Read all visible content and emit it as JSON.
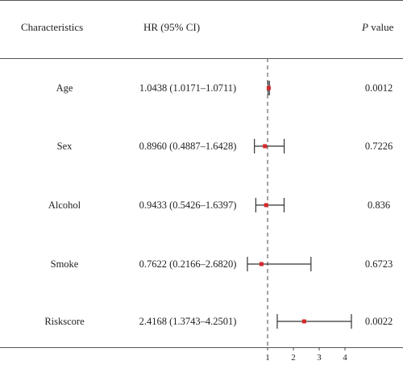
{
  "header": {
    "characteristics": "Characteristics",
    "hr_ci": "HR (95% CI)",
    "p_italic": "P",
    "p_rest": " value"
  },
  "chart_data": {
    "type": "forest",
    "reference_line": 1,
    "xlim": [
      0,
      4.3
    ],
    "xticks": [
      1,
      2,
      3,
      4
    ],
    "rows": [
      {
        "name": "Age",
        "hr_text": "1.0438 (1.0171–1.0711)",
        "hr": 1.0438,
        "lo": 1.0171,
        "hi": 1.0711,
        "p": "0.0012"
      },
      {
        "name": "Sex",
        "hr_text": "0.8960 (0.4887–1.6428)",
        "hr": 0.896,
        "lo": 0.4887,
        "hi": 1.6428,
        "p": "0.7226"
      },
      {
        "name": "Alcohol",
        "hr_text": "0.9433 (0.5426–1.6397)",
        "hr": 0.9433,
        "lo": 0.5426,
        "hi": 1.6397,
        "p": "0.836"
      },
      {
        "name": "Smoke",
        "hr_text": "0.7622 (0.2166–2.6820)",
        "hr": 0.7622,
        "lo": 0.2166,
        "hi": 2.682,
        "p": "0.6723"
      },
      {
        "name": "Riskscore",
        "hr_text": "2.4168 (1.3743–4.2501)",
        "hr": 2.4168,
        "lo": 1.3743,
        "hi": 4.2501,
        "p": "0.0022"
      }
    ],
    "point_color": "#d62728",
    "line_color": "#333333"
  }
}
